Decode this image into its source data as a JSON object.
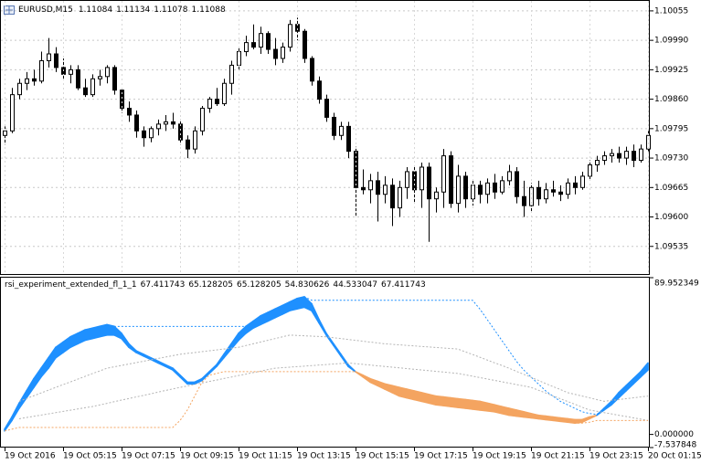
{
  "chart_data": [
    {
      "type": "candlestick",
      "title": "EURUSD,M15",
      "quote": [
        1.11084,
        1.11134,
        1.11078,
        1.11088
      ],
      "ylim": [
        1.09472,
        1.10077
      ],
      "yticks": [
        1.09535,
        {
          "value": 1.096,
          "label": "1.09600"
        },
        1.09665,
        {
          "value": 1.0973,
          "label": "1.09730"
        },
        1.09795,
        {
          "value": 1.0986,
          "label": "1.09860"
        },
        1.09925,
        {
          "value": 1.0999,
          "label": "1.09990"
        },
        1.10055
      ],
      "grid": true,
      "up_color": "#ffffff",
      "down_color": "#000000",
      "open": [
        1.0978,
        1.0979,
        1.0987,
        1.09895,
        1.09905,
        1.099,
        1.09945,
        1.0996,
        1.0993,
        1.09915,
        1.09925,
        1.09885,
        1.0987,
        1.09905,
        1.0991,
        1.0993,
        1.0988,
        1.0984,
        1.09825,
        1.0979,
        1.09775,
        1.09795,
        1.09805,
        1.0981,
        1.09805,
        1.0977,
        1.0975,
        1.0979,
        1.0984,
        1.0986,
        1.0985,
        1.09895,
        1.09935,
        1.09965,
        1.09985,
        1.09975,
        1.10005,
        1.0997,
        1.0995,
        1.09975,
        1.10025,
        1.1001,
        1.0995,
        1.099,
        1.0986,
        1.0982,
        1.0978,
        1.098,
        1.09745,
        1.09665,
        1.0966,
        1.0968,
        1.0965,
        1.0967,
        1.0962,
        1.09665,
        1.097,
        1.0966,
        1.0971,
        1.0964,
        1.09655,
        1.09735,
        1.0963,
        1.0969,
        1.0964,
        1.0967,
        1.0965,
        1.09675,
        1.09655,
        1.0968,
        1.097,
        1.09645,
        1.09625,
        1.09665,
        1.0964,
        1.0966,
        1.09655,
        1.0965,
        1.09675,
        1.09665,
        1.0969,
        1.09715,
        1.09725,
        1.09735,
        1.0974,
        1.0973,
        1.09745,
        1.09725,
        1.0975
      ],
      "high": [
        1.098,
        1.09885,
        1.09905,
        1.0992,
        1.09925,
        1.09965,
        1.09995,
        1.09975,
        1.0995,
        1.09935,
        1.09935,
        1.09905,
        1.09915,
        1.09925,
        1.09935,
        1.09935,
        1.09885,
        1.09855,
        1.09835,
        1.098,
        1.098,
        1.09815,
        1.09825,
        1.0983,
        1.09815,
        1.0978,
        1.098,
        1.09845,
        1.09865,
        1.09885,
        1.09905,
        1.09945,
        1.09975,
        1.1,
        1.10025,
        1.1002,
        1.1001,
        1.09995,
        1.09985,
        1.10035,
        1.1004,
        1.10015,
        1.09955,
        1.0991,
        1.0987,
        1.0983,
        1.0981,
        1.0981,
        1.09755,
        1.09705,
        1.09695,
        1.097,
        1.0969,
        1.09685,
        1.0968,
        1.0971,
        1.0971,
        1.0972,
        1.0972,
        1.09665,
        1.0975,
        1.09745,
        1.09715,
        1.097,
        1.0968,
        1.0968,
        1.09685,
        1.09695,
        1.0969,
        1.09715,
        1.0971,
        1.0968,
        1.09675,
        1.0968,
        1.09675,
        1.0968,
        1.0967,
        1.09685,
        1.0969,
        1.097,
        1.09725,
        1.09735,
        1.09745,
        1.0975,
        1.09755,
        1.09755,
        1.0976,
        1.0976,
        1.0979
      ],
      "low": [
        1.0976,
        1.09785,
        1.0986,
        1.0988,
        1.0989,
        1.09895,
        1.0993,
        1.0992,
        1.09905,
        1.09895,
        1.0988,
        1.09865,
        1.09865,
        1.0989,
        1.09895,
        1.0987,
        1.0983,
        1.0981,
        1.09775,
        1.09755,
        1.09765,
        1.0978,
        1.0979,
        1.09795,
        1.0976,
        1.0973,
        1.0974,
        1.0978,
        1.0983,
        1.09845,
        1.09845,
        1.0987,
        1.09925,
        1.09955,
        1.0997,
        1.0996,
        1.0996,
        1.09935,
        1.0994,
        1.09965,
        1.0999,
        1.0994,
        1.0989,
        1.0985,
        1.0981,
        1.0977,
        1.0977,
        1.0973,
        1.096,
        1.0965,
        1.0963,
        1.0959,
        1.0963,
        1.0958,
        1.096,
        1.0964,
        1.0963,
        1.0962,
        1.09545,
        1.0961,
        1.0962,
        1.0962,
        1.0961,
        1.0962,
        1.09625,
        1.0963,
        1.0963,
        1.0964,
        1.0965,
        1.0967,
        1.0963,
        1.096,
        1.0961,
        1.09625,
        1.0963,
        1.09645,
        1.09635,
        1.0964,
        1.0965,
        1.0966,
        1.0968,
        1.097,
        1.09715,
        1.0972,
        1.0972,
        1.09715,
        1.0971,
        1.0972,
        1.09745
      ],
      "close": [
        1.0979,
        1.0987,
        1.09895,
        1.09905,
        1.099,
        1.09945,
        1.0996,
        1.0993,
        1.09915,
        1.09925,
        1.09885,
        1.0987,
        1.09905,
        1.0991,
        1.0993,
        1.0988,
        1.0984,
        1.09825,
        1.0979,
        1.09775,
        1.09795,
        1.09805,
        1.0981,
        1.09805,
        1.0977,
        1.0975,
        1.0979,
        1.0984,
        1.0986,
        1.0985,
        1.09895,
        1.09935,
        1.09965,
        1.09985,
        1.09975,
        1.10005,
        1.0997,
        1.0995,
        1.09975,
        1.10025,
        1.1001,
        1.0995,
        1.099,
        1.0986,
        1.0982,
        1.0978,
        1.098,
        1.09745,
        1.09665,
        1.0966,
        1.0968,
        1.0965,
        1.0967,
        1.0962,
        1.09665,
        1.097,
        1.0966,
        1.0971,
        1.0964,
        1.09655,
        1.09735,
        1.0963,
        1.0969,
        1.0964,
        1.0967,
        1.0965,
        1.09675,
        1.09655,
        1.0968,
        1.097,
        1.09645,
        1.09625,
        1.09665,
        1.0964,
        1.0966,
        1.09655,
        1.0965,
        1.09675,
        1.09665,
        1.0969,
        1.09715,
        1.09725,
        1.09735,
        1.0974,
        1.0973,
        1.09745,
        1.09725,
        1.0975,
        1.0978
      ]
    },
    {
      "type": "line",
      "title": "rsi_experiment_extended_fl_1_1",
      "indicator_values": [
        67.411743,
        65.128205,
        65.128205,
        54.830626,
        44.533047,
        67.411743
      ],
      "categories": [
        "19 Oct 2016",
        null,
        null,
        null,
        null,
        null,
        null,
        null,
        "19 Oct 05:15",
        null,
        null,
        null,
        null,
        null,
        null,
        null,
        "19 Oct 07:15",
        null,
        null,
        null,
        null,
        null,
        null,
        null,
        "19 Oct 09:15",
        null,
        null,
        null,
        null,
        null,
        null,
        null,
        "19 Oct 11:15",
        null,
        null,
        null,
        null,
        null,
        null,
        null,
        "19 Oct 13:15",
        null,
        null,
        null,
        null,
        null,
        null,
        null,
        "19 Oct 15:15",
        null,
        null,
        null,
        null,
        null,
        null,
        null,
        "19 Oct 17:15",
        null,
        null,
        null,
        null,
        null,
        null,
        null,
        "19 Oct 19:15",
        null,
        null,
        null,
        null,
        null,
        null,
        null,
        "19 Oct 21:15",
        null,
        null,
        null,
        null,
        null,
        null,
        null,
        "19 Oct 23:15",
        null,
        null,
        null,
        null,
        null,
        null,
        null,
        "20 Oct 01:15"
      ],
      "ylim": [
        -7.537848,
        89.952349
      ],
      "yticks": [
        89.952349,
        {
          "value": 0,
          "label": "0.000000"
        },
        -7.537848
      ],
      "fill_between": [
        0,
        1
      ],
      "series": [
        {
          "color": "#1e90ff",
          "values": [
            3,
            10,
            18,
            25,
            32,
            38,
            44,
            50,
            53,
            56,
            58,
            60,
            61,
            62,
            63,
            62,
            58,
            52,
            48,
            46,
            44,
            42,
            40,
            38,
            34,
            30,
            30,
            32,
            36,
            40,
            46,
            52,
            58,
            62,
            65,
            68,
            70,
            72,
            74,
            76,
            78,
            79,
            75,
            66,
            58,
            52,
            46,
            40,
            36,
            33,
            30,
            28,
            26,
            24,
            22,
            21,
            20,
            19,
            18,
            17,
            16.5,
            16,
            15.5,
            15,
            14.5,
            14,
            13.5,
            13,
            12,
            11,
            10.5,
            10,
            9.5,
            9,
            8.5,
            8,
            7.5,
            7,
            6.5,
            7,
            9,
            11,
            15,
            19,
            24,
            28,
            32,
            36,
            41
          ]
        },
        {
          "color": "#f4a460",
          "values": [
            2,
            8,
            15,
            21,
            27,
            33,
            38,
            44,
            47,
            50,
            52,
            54,
            55,
            56,
            57,
            57,
            55,
            50,
            47,
            45,
            43,
            41,
            39,
            37,
            33,
            29,
            29,
            31,
            35,
            39,
            44,
            49,
            54,
            58,
            61,
            63,
            65,
            67,
            69,
            71,
            72,
            73,
            71,
            64,
            57,
            51,
            45,
            39,
            36,
            34,
            32,
            30.5,
            29,
            28,
            27,
            26,
            25,
            24,
            23,
            22,
            21.5,
            21,
            20.5,
            20,
            19.5,
            19,
            18,
            17,
            16,
            15,
            14,
            13,
            12,
            11,
            10.5,
            10,
            9.5,
            9,
            8.5,
            8.5,
            10,
            11,
            14,
            17,
            21,
            25,
            29,
            33,
            37
          ]
        },
        {
          "color": "#1e90ff",
          "dash": true,
          "values": [
            3,
            10,
            18,
            25,
            32,
            38,
            44,
            50,
            53,
            56,
            58,
            60,
            61,
            62,
            63,
            62,
            62,
            62,
            62,
            62,
            62,
            62,
            62,
            62,
            62,
            62,
            62,
            62,
            62,
            62,
            62,
            62,
            62,
            62,
            65,
            68,
            70,
            72,
            74,
            76,
            78,
            79,
            77,
            77,
            77,
            77,
            77,
            77,
            77,
            77,
            77,
            77,
            77,
            77,
            77,
            77,
            77,
            77,
            77,
            77,
            77,
            77,
            77,
            77,
            77,
            72,
            66,
            60,
            54,
            48,
            42,
            37,
            33,
            29,
            25,
            22,
            19,
            17,
            15,
            13,
            12,
            11.5,
            15,
            19,
            24,
            28,
            32,
            36,
            41
          ]
        },
        {
          "color": "#b4b4b4",
          "dash": true,
          "values": [
            null,
            null,
            19,
            20.6,
            22.2,
            23.8,
            25.4,
            27,
            28.6,
            30.1,
            31.7,
            33.3,
            34.9,
            36.4,
            38,
            38.8,
            39.6,
            40.4,
            41.2,
            42,
            42.8,
            43.6,
            44.4,
            45.2,
            46,
            46.5,
            47,
            47.5,
            48,
            48.5,
            49,
            49.5,
            50,
            51,
            52,
            53,
            54,
            55,
            56,
            57,
            56.8,
            56.6,
            56.4,
            56.2,
            56,
            55.5,
            55,
            54.5,
            54,
            53.5,
            53,
            52.5,
            52,
            51.7,
            51.4,
            51.1,
            50.8,
            50.5,
            50.2,
            49.9,
            49.6,
            49.3,
            49,
            47.4,
            45.9,
            44.3,
            42.7,
            41.1,
            39.6,
            38,
            36.2,
            34.5,
            32.8,
            31,
            29.2,
            27.5,
            25.8,
            24,
            23,
            22,
            21,
            20,
            19,
            19.5,
            20,
            20.5,
            21,
            21.5,
            22
          ]
        },
        {
          "color": "#b4b4b4",
          "dash": true,
          "values": [
            null,
            null,
            9,
            9.7,
            10.4,
            11.1,
            11.8,
            12.5,
            13.2,
            13.9,
            14.6,
            15.3,
            16,
            16.9,
            17.8,
            18.8,
            19.7,
            20.6,
            21.5,
            22.4,
            23.3,
            24.3,
            25.2,
            26.1,
            27,
            27.8,
            28.7,
            29.5,
            30.4,
            31.2,
            32.1,
            32.9,
            33.8,
            34.6,
            35.5,
            36.3,
            37.2,
            38,
            38.3,
            38.6,
            38.9,
            39.2,
            39.5,
            39.8,
            40.1,
            40.4,
            40.7,
            41,
            40.6,
            40.2,
            39.8,
            39.4,
            39,
            38.6,
            38.2,
            37.8,
            37.4,
            37,
            36.6,
            36.2,
            35.8,
            35.4,
            35,
            34.2,
            33.4,
            32.6,
            31.8,
            31,
            30.2,
            29.4,
            28.6,
            27.8,
            27,
            25.4,
            23.8,
            22.1,
            20.5,
            18.9,
            17.3,
            15.6,
            14,
            13.3,
            12.5,
            11.8,
            11,
            10.3,
            9.5,
            8.8,
            8
          ]
        },
        {
          "color": "#f4a460",
          "dash": true,
          "values": [
            2,
            3,
            4,
            4,
            4,
            4,
            4,
            4,
            4,
            4,
            4,
            4,
            4,
            4,
            4,
            4,
            4,
            4,
            4,
            4,
            4,
            4,
            4,
            4,
            8,
            14,
            22,
            30,
            34,
            35,
            36,
            36,
            36,
            36,
            36,
            36,
            36,
            36,
            36,
            36,
            36,
            36,
            36,
            36,
            36,
            36,
            36,
            36,
            36,
            33,
            30,
            28,
            26,
            24,
            22,
            21,
            20,
            19,
            18,
            17,
            16.5,
            16,
            15.5,
            15,
            14.5,
            14,
            13.5,
            13,
            12,
            11,
            10.5,
            10,
            9.5,
            9,
            8.5,
            8,
            7.5,
            7,
            6.5,
            6.5,
            7,
            8,
            8,
            8,
            8,
            8,
            8,
            8,
            8
          ]
        }
      ]
    }
  ]
}
